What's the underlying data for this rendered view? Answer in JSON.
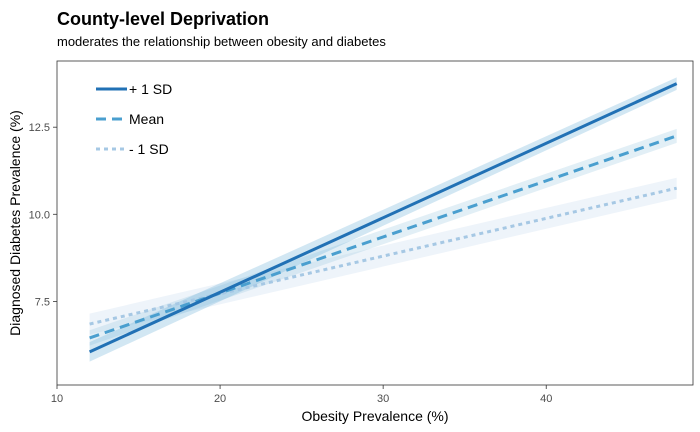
{
  "chart_data": {
    "type": "line",
    "title": "County-level Deprivation",
    "subtitle": "moderates the relationship between obesity and diabetes",
    "xlabel": "Obesity Prevalence (%)",
    "ylabel": "Diagnosed Diabetes Prevalence (%)",
    "xlim": [
      10,
      49
    ],
    "ylim": [
      5.1,
      14.4
    ],
    "x_ticks": [
      "10",
      "20",
      "30",
      "40"
    ],
    "x_tick_values": [
      10,
      20,
      30,
      40
    ],
    "y_ticks": [
      "7.5",
      "10.0",
      "12.5"
    ],
    "y_tick_values": [
      7.5,
      10.0,
      12.5
    ],
    "grid": false,
    "legend_position": "top-left",
    "series": [
      {
        "name": "+ 1 SD",
        "x": [
          12,
          48
        ],
        "values": [
          6.05,
          13.75
        ],
        "ribbon_halfwidth": [
          0.28,
          0.18
        ],
        "color": "#2171b5",
        "dash": "solid",
        "ribbon_color": "#6baed6"
      },
      {
        "name": "Mean",
        "x": [
          12,
          48
        ],
        "values": [
          6.45,
          12.25
        ],
        "ribbon_halfwidth": [
          0.22,
          0.2
        ],
        "color": "#4a9fcf",
        "dash": "dashed",
        "ribbon_color": "#9ecae1"
      },
      {
        "name": "- 1 SD",
        "x": [
          12,
          48
        ],
        "values": [
          6.85,
          10.75
        ],
        "ribbon_halfwidth": [
          0.3,
          0.3
        ],
        "color": "#a6c8e4",
        "dash": "dotted",
        "ribbon_color": "#c6dbef"
      }
    ]
  }
}
